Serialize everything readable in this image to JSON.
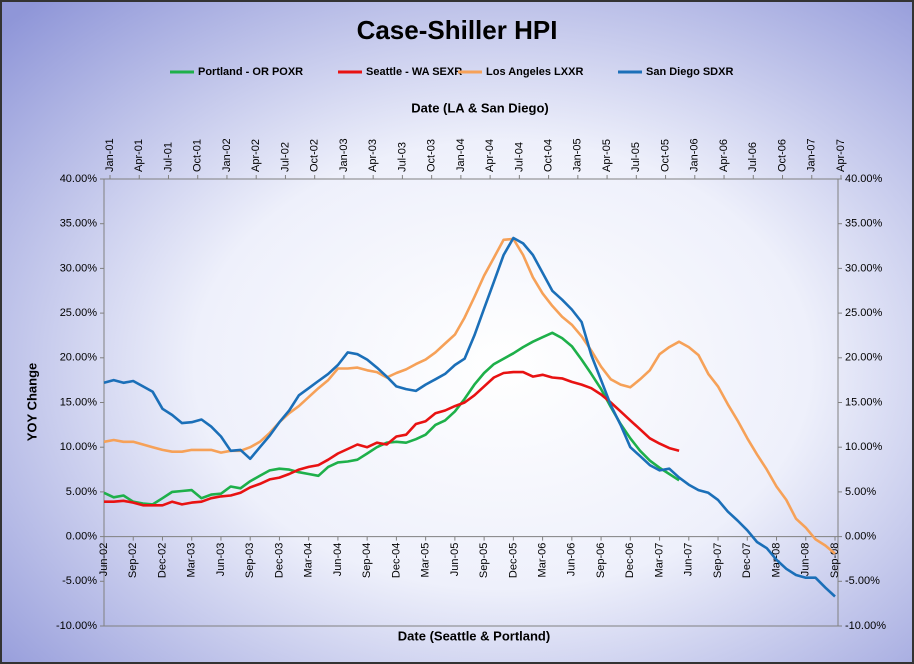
{
  "chart_data": {
    "type": "line",
    "title": "Case-Shiller HPI",
    "x_label": "Date (Seattle & Portland)",
    "x2_label": "Date (LA & San Diego)",
    "y_label": "YOY Change",
    "categories": [
      "Jun-02",
      null,
      null,
      "Sep-02",
      null,
      null,
      "Dec-02",
      null,
      null,
      "Mar-03",
      null,
      null,
      "Jun-03",
      null,
      null,
      "Sep-03",
      null,
      null,
      "Dec-03",
      null,
      null,
      "Mar-04",
      null,
      null,
      "Jun-04",
      null,
      null,
      "Sep-04",
      null,
      null,
      "Dec-04",
      null,
      null,
      "Mar-05",
      null,
      null,
      "Jun-05",
      null,
      null,
      "Sep-05",
      null,
      null,
      "Dec-05",
      null,
      null,
      "Mar-06",
      null,
      null,
      "Jun-06",
      null,
      null,
      "Sep-06",
      null,
      null,
      "Dec-06",
      null,
      null,
      "Mar-07",
      null,
      null,
      "Jun-07",
      null,
      null,
      "Sep-07",
      null,
      null,
      "Dec-07",
      null,
      null,
      "Mar-08",
      null,
      null,
      "Jun-08",
      null,
      null,
      "Sep-08"
    ],
    "x2_categories": [
      "Jan-01",
      null,
      null,
      "Apr-01",
      null,
      null,
      "Jul-01",
      null,
      null,
      "Oct-01",
      null,
      null,
      "Jan-02",
      null,
      null,
      "Apr-02",
      null,
      null,
      "Jul-02",
      null,
      null,
      "Oct-02",
      null,
      null,
      "Jan-03",
      null,
      null,
      "Apr-03",
      null,
      null,
      "Jul-03",
      null,
      null,
      "Oct-03",
      null,
      null,
      "Jan-04",
      null,
      null,
      "Apr-04",
      null,
      null,
      "Jul-04",
      null,
      null,
      "Oct-04",
      null,
      null,
      "Jan-05",
      null,
      null,
      "Apr-05",
      null,
      null,
      "Jul-05",
      null,
      null,
      "Oct-05",
      null,
      null,
      "Jan-06",
      null,
      null,
      "Apr-06",
      null,
      null,
      "Jul-06",
      null,
      null,
      "Oct-06",
      null,
      null,
      "Jan-07",
      null,
      null,
      "Apr-07"
    ],
    "series": [
      {
        "name": "Portland - OR POXR",
        "color": "#1eb04a",
        "axis": "x",
        "values": [
          4.9,
          4.4,
          4.6,
          3.9,
          3.7,
          3.6,
          4.3,
          5.0,
          5.1,
          5.2,
          4.3,
          4.7,
          4.8,
          5.6,
          5.4,
          6.2,
          6.8,
          7.4,
          7.6,
          7.5,
          7.2,
          7.0,
          6.8,
          7.8,
          8.3,
          8.4,
          8.6,
          9.3,
          10.0,
          10.5,
          10.6,
          10.5,
          10.9,
          11.4,
          12.5,
          13.0,
          14.0,
          15.4,
          17.0,
          18.3,
          19.3,
          19.9,
          20.5,
          21.2,
          21.8,
          22.3,
          22.8,
          22.2,
          21.3,
          19.8,
          18.2,
          16.5,
          14.5,
          12.6,
          11.0,
          9.6,
          8.5,
          7.7,
          7.0,
          6.3,
          null,
          null,
          null,
          null,
          null,
          null,
          null,
          null,
          null,
          null,
          null,
          null,
          null,
          null,
          null,
          null
        ]
      },
      {
        "name": "Seattle - WA SEXR",
        "color": "#e81212",
        "axis": "x",
        "values": [
          3.9,
          3.9,
          4.0,
          3.8,
          3.5,
          3.5,
          3.5,
          3.9,
          3.6,
          3.8,
          3.9,
          4.3,
          4.5,
          4.6,
          4.9,
          5.5,
          5.9,
          6.4,
          6.6,
          7.0,
          7.5,
          7.8,
          8.0,
          8.6,
          9.3,
          9.8,
          10.3,
          10.0,
          10.5,
          10.3,
          11.2,
          11.4,
          12.6,
          12.9,
          13.8,
          14.1,
          14.6,
          15.0,
          15.8,
          16.8,
          17.8,
          18.3,
          18.4,
          18.4,
          17.9,
          18.1,
          17.8,
          17.7,
          17.3,
          17.0,
          16.6,
          15.9,
          15.0,
          14.0,
          13.0,
          12.0,
          11.0,
          10.4,
          9.9,
          9.6,
          null,
          null,
          null,
          null,
          null,
          null,
          null,
          null,
          null,
          null,
          null,
          null,
          null,
          null,
          null,
          null
        ]
      },
      {
        "name": "Los Angeles LXXR",
        "color": "#f6a158",
        "axis": "x2",
        "values": [
          10.6,
          10.8,
          10.6,
          10.6,
          10.3,
          10.0,
          9.7,
          9.5,
          9.5,
          9.7,
          9.7,
          9.7,
          9.4,
          9.6,
          9.6,
          10.0,
          10.6,
          11.6,
          12.8,
          13.8,
          14.6,
          15.6,
          16.6,
          17.5,
          18.8,
          18.8,
          18.9,
          18.6,
          18.4,
          17.8,
          18.3,
          18.7,
          19.3,
          19.8,
          20.6,
          21.6,
          22.6,
          24.5,
          26.8,
          29.2,
          31.2,
          33.2,
          33.3,
          31.5,
          29.0,
          27.2,
          25.8,
          24.6,
          23.7,
          22.4,
          20.8,
          19.0,
          17.6,
          17.0,
          16.7,
          17.6,
          18.6,
          20.4,
          21.2,
          21.8,
          21.2,
          20.3,
          18.2,
          16.8,
          14.8,
          13.0,
          11.0,
          9.2,
          7.5,
          5.6,
          4.1,
          2.0,
          1.0,
          -0.3,
          -1.0,
          -1.9
        ]
      },
      {
        "name": "San Diego SDXR",
        "color": "#1b6fb8",
        "axis": "x2",
        "values": [
          17.2,
          17.5,
          17.2,
          17.4,
          16.8,
          16.2,
          14.3,
          13.6,
          12.7,
          12.8,
          13.1,
          12.3,
          11.2,
          9.6,
          9.7,
          8.7,
          10.0,
          11.3,
          12.8,
          14.1,
          15.8,
          16.6,
          17.4,
          18.2,
          19.2,
          20.6,
          20.4,
          19.8,
          18.9,
          17.9,
          16.8,
          16.5,
          16.3,
          17.0,
          17.6,
          18.2,
          19.2,
          19.9,
          22.5,
          25.5,
          28.5,
          31.5,
          33.4,
          32.8,
          31.5,
          29.5,
          27.5,
          26.5,
          25.4,
          24.0,
          20.3,
          17.5,
          14.7,
          12.5,
          10.0,
          9.0,
          8.0,
          7.4,
          7.6,
          6.6,
          5.8,
          5.2,
          4.9,
          4.1,
          2.8,
          1.8,
          0.7,
          -0.6,
          -1.3,
          -2.6,
          -3.6,
          -4.3,
          -4.6,
          -4.6,
          -5.7,
          -6.7
        ]
      }
    ],
    "ylim": [
      -10,
      40
    ],
    "yticks": [
      {
        "value": -10,
        "label": "-10.00%"
      },
      {
        "value": -5,
        "label": "-5.00%"
      },
      {
        "value": 0,
        "label": "0.00%"
      },
      {
        "value": 5,
        "label": "5.00%"
      },
      {
        "value": 10,
        "label": "10.00%"
      },
      {
        "value": 15,
        "label": "15.00%"
      },
      {
        "value": 20,
        "label": "20.00%"
      },
      {
        "value": 25,
        "label": "25.00%"
      },
      {
        "value": 30,
        "label": "30.00%"
      },
      {
        "value": 35,
        "label": "35.00%"
      },
      {
        "value": 40,
        "label": "40.00%"
      }
    ],
    "y2lim": [
      -10,
      40
    ],
    "y2ticks": [
      {
        "value": -10,
        "label": "-10.00%"
      },
      {
        "value": -5,
        "label": "-5.00%"
      },
      {
        "value": 0,
        "label": "0.00%"
      },
      {
        "value": 5,
        "label": "5.00%"
      },
      {
        "value": 10,
        "label": "10.00%"
      },
      {
        "value": 15,
        "label": "15.00%"
      },
      {
        "value": 20,
        "label": "20.00%"
      },
      {
        "value": 25,
        "label": "25.00%"
      },
      {
        "value": 30,
        "label": "30.00%"
      },
      {
        "value": 35,
        "label": "35.00%"
      },
      {
        "value": 40,
        "label": "40.00%"
      }
    ],
    "legend": "top",
    "grid": false
  }
}
